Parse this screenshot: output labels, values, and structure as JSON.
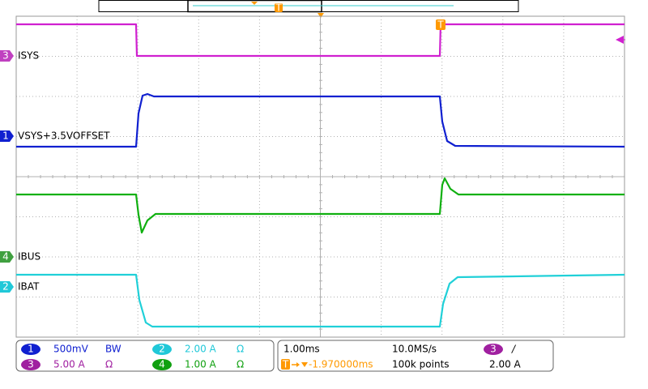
{
  "trigger_marker": "T",
  "traces": [
    {
      "channel": "3",
      "label": "ISYS"
    },
    {
      "channel": "1",
      "label": "VSYS+3.5VOFFSET"
    },
    {
      "channel": "4",
      "label": "IBUS"
    },
    {
      "channel": "2",
      "label": "IBAT"
    }
  ],
  "channel_settings": [
    {
      "channel": "1",
      "scale": "500mV",
      "flag": "BW"
    },
    {
      "channel": "2",
      "scale": "2.00 A",
      "flag": "Ω"
    },
    {
      "channel": "3",
      "scale": "5.00 A",
      "flag": "Ω"
    },
    {
      "channel": "4",
      "scale": "1.00 A",
      "flag": "Ω"
    }
  ],
  "timebase": {
    "scale": "1.00ms",
    "sample_rate": "10.0MS/s",
    "trigger_channel": "3",
    "trigger_slope": "/",
    "trigger_position": "-1.970000ms",
    "record_length": "100k points",
    "trigger_level": "2.00 A"
  }
}
